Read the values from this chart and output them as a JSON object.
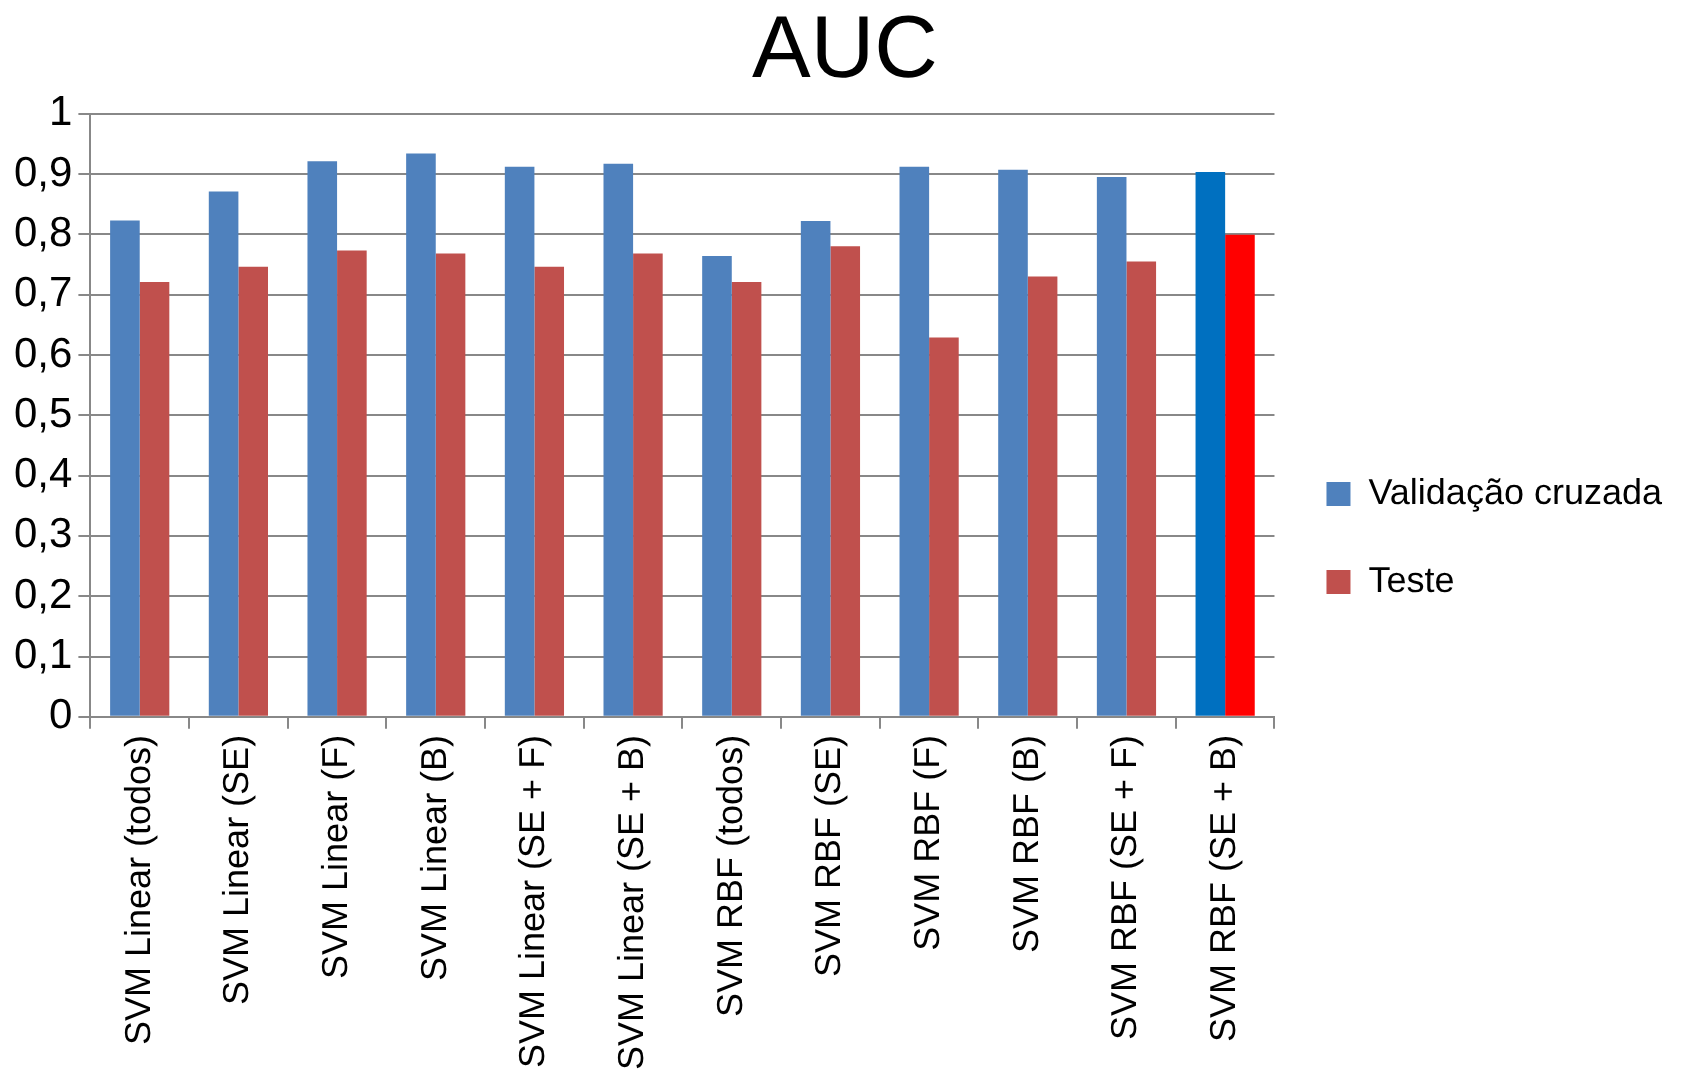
{
  "chart_data": {
    "type": "bar",
    "title": "AUC",
    "categories": [
      "SVM Linear (todos)",
      "SVM Linear (SE)",
      "SVM Linear (F)",
      "SVM Linear (B)",
      "SVM Linear (SE + F)",
      "SVM Linear (SE + B)",
      "SVM RBF (todos)",
      "SVM RBF (SE)",
      "SVM RBF (F)",
      "SVM RBF (B)",
      "SVM RBF (SE + F)",
      "SVM RBF (SE + B)"
    ],
    "series": [
      {
        "name": "Validação cruzada",
        "color": "#4f81bd",
        "colors": [
          "#4f81bd",
          "#4f81bd",
          "#4f81bd",
          "#4f81bd",
          "#4f81bd",
          "#4f81bd",
          "#4f81bd",
          "#4f81bd",
          "#4f81bd",
          "#4f81bd",
          "#4f81bd",
          "#0070c0"
        ],
        "values": [
          0.823,
          0.871,
          0.921,
          0.934,
          0.912,
          0.917,
          0.764,
          0.822,
          0.912,
          0.907,
          0.895,
          0.903
        ]
      },
      {
        "name": "Teste",
        "color": "#c0504d",
        "colors": [
          "#c0504d",
          "#c0504d",
          "#c0504d",
          "#c0504d",
          "#c0504d",
          "#c0504d",
          "#c0504d",
          "#c0504d",
          "#c0504d",
          "#c0504d",
          "#c0504d",
          "#ff0000"
        ],
        "values": [
          0.721,
          0.746,
          0.773,
          0.768,
          0.746,
          0.768,
          0.721,
          0.78,
          0.629,
          0.73,
          0.755,
          0.799
        ]
      }
    ],
    "ylim": [
      0,
      1
    ],
    "yticks": [
      {
        "value": 0,
        "label": "0"
      },
      {
        "value": 0.1,
        "label": "0,1"
      },
      {
        "value": 0.2,
        "label": "0,2"
      },
      {
        "value": 0.3,
        "label": "0,3"
      },
      {
        "value": 0.4,
        "label": "0,4"
      },
      {
        "value": 0.5,
        "label": "0,5"
      },
      {
        "value": 0.6,
        "label": "0,6"
      },
      {
        "value": 0.7,
        "label": "0,7"
      },
      {
        "value": 0.8,
        "label": "0,8"
      },
      {
        "value": 0.9,
        "label": "0,9"
      },
      {
        "value": 1,
        "label": "1"
      }
    ],
    "grid": "y",
    "legend": "right"
  }
}
